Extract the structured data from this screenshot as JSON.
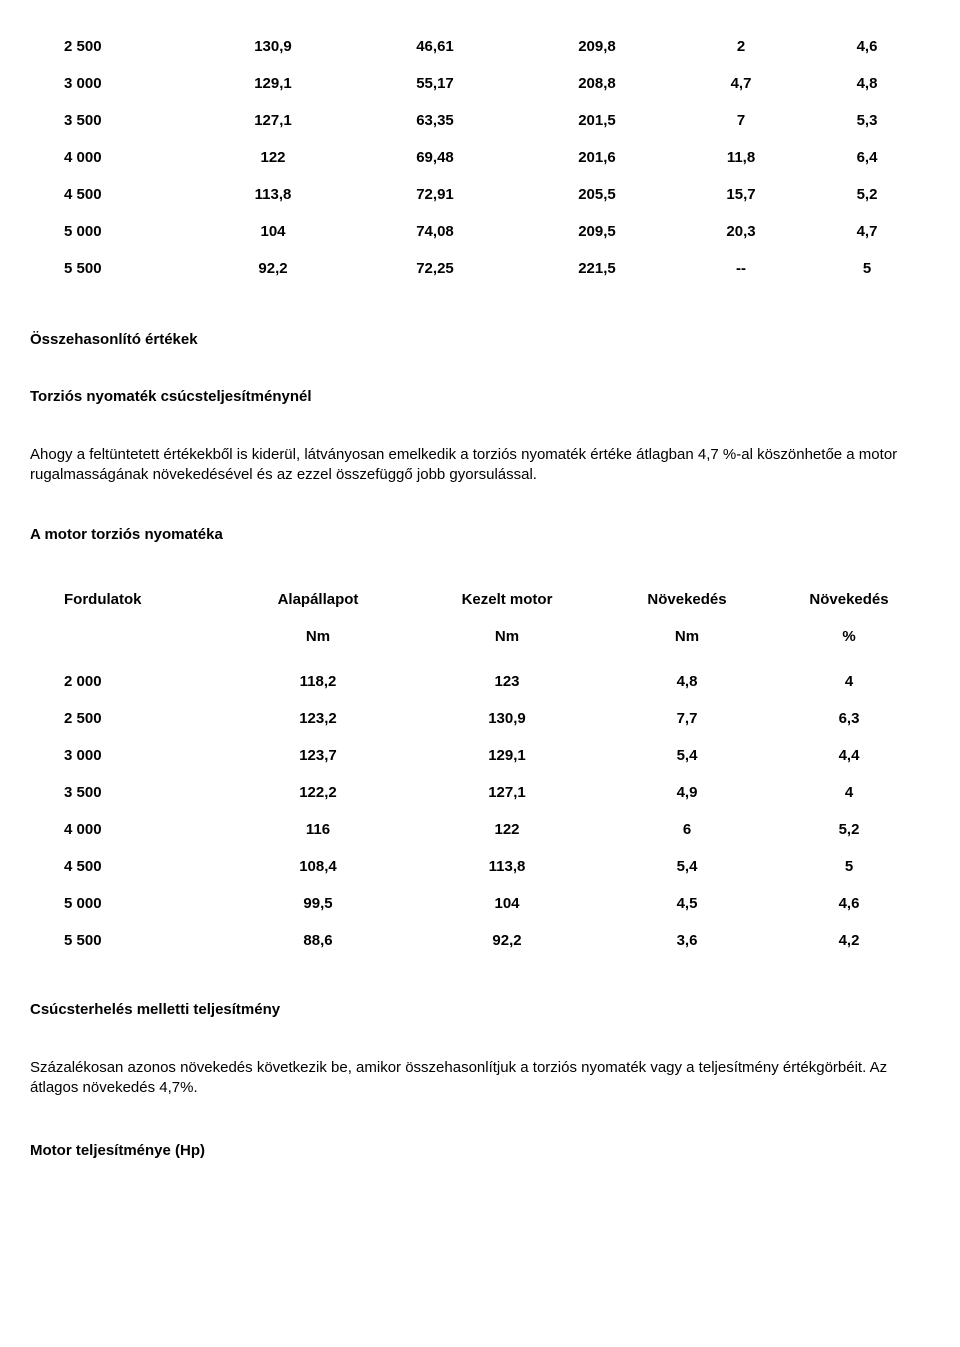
{
  "table1": {
    "rows": [
      [
        "2 500",
        "130,9",
        "46,61",
        "209,8",
        "2",
        "4,6"
      ],
      [
        "3 000",
        "129,1",
        "55,17",
        "208,8",
        "4,7",
        "4,8"
      ],
      [
        "3 500",
        "127,1",
        "63,35",
        "201,5",
        "7",
        "5,3"
      ],
      [
        "4 000",
        "122",
        "69,48",
        "201,6",
        "11,8",
        "6,4"
      ],
      [
        "4 500",
        "113,8",
        "72,91",
        "205,5",
        "15,7",
        "5,2"
      ],
      [
        "5 000",
        "104",
        "74,08",
        "209,5",
        "20,3",
        "4,7"
      ],
      [
        "5 500",
        "92,2",
        "72,25",
        "221,5",
        "--",
        "5"
      ]
    ]
  },
  "section1": {
    "heading": "Összehasonlító értékek",
    "subheading": "Torziós nyomaték csúcsteljesítménynél",
    "paragraph": "Ahogy a feltüntetett értékekből is kiderül, látványosan emelkedik a torziós nyomaték értéke átlagban 4,7 %-al köszönhetőe a motor rugalmasságának növekedésével és az ezzel összefüggő jobb gyorsulással."
  },
  "section2": {
    "heading": "A motor torziós nyomatéka",
    "headers": [
      "Fordulatok",
      "Alapállapot",
      "Kezelt motor",
      "Növekedés",
      "Növekedés"
    ],
    "units": [
      "",
      "Nm",
      "Nm",
      "Nm",
      "%"
    ],
    "rows": [
      [
        "2 000",
        "118,2",
        "123",
        "4,8",
        "4"
      ],
      [
        "2 500",
        "123,2",
        "130,9",
        "7,7",
        "6,3"
      ],
      [
        "3 000",
        "123,7",
        "129,1",
        "5,4",
        "4,4"
      ],
      [
        "3 500",
        "122,2",
        "127,1",
        "4,9",
        "4"
      ],
      [
        "4 000",
        "116",
        "122",
        "6",
        "5,2"
      ],
      [
        "4 500",
        "108,4",
        "113,8",
        "5,4",
        "5"
      ],
      [
        "5 000",
        "99,5",
        "104",
        "4,5",
        "4,6"
      ],
      [
        "5 500",
        "88,6",
        "92,2",
        "3,6",
        "4,2"
      ]
    ]
  },
  "section3": {
    "heading": "Csúcsterhelés melletti teljesítmény",
    "paragraph": "Százalékosan azonos növekedés következik be, amikor összehasonlítjuk a torziós nyomaték vagy a teljesítmény értékgörbéit. Az átlagos növekedés 4,7%."
  },
  "section4": {
    "heading": "Motor teljesítménye (Hp)"
  }
}
